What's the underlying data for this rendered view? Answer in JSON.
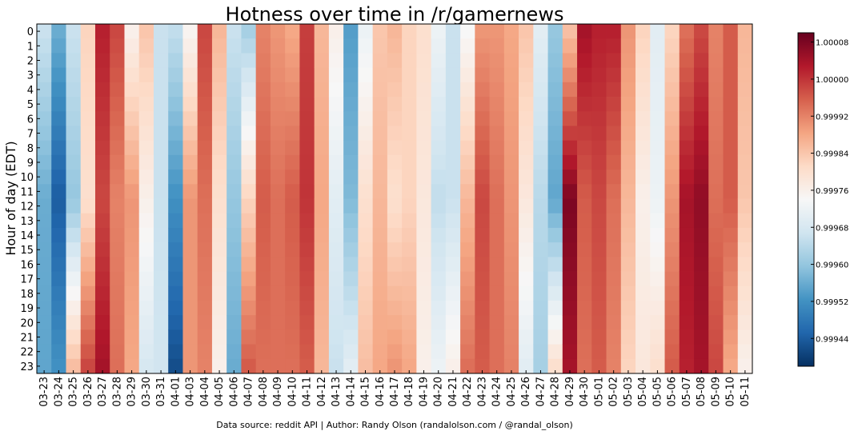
{
  "chart_data": {
    "type": "heatmap",
    "title": "Hotness over time in /r/gamernews",
    "xlabel": "",
    "ylabel": "Hour of day (EDT)",
    "source": "Data source: reddit API | Author: Randy Olson (randalolson.com / @randal_olson)",
    "colormap": "RdBu_r",
    "colormap_stops": [
      "#053061",
      "#2166ac",
      "#4393c3",
      "#92c5de",
      "#d1e5f0",
      "#f7f7f7",
      "#fddbc7",
      "#f4a582",
      "#d6604d",
      "#b2182b",
      "#67001f"
    ],
    "vmin": 0.99938,
    "vmax": 1.0001,
    "colorbar_ticks": [
      {
        "value": 0.99944,
        "label": "0.99944"
      },
      {
        "value": 0.99952,
        "label": "0.99952"
      },
      {
        "value": 0.9996,
        "label": "0.99960"
      },
      {
        "value": 0.99968,
        "label": "0.99968"
      },
      {
        "value": 0.99976,
        "label": "0.99976"
      },
      {
        "value": 0.99984,
        "label": "0.99984"
      },
      {
        "value": 0.99992,
        "label": "0.99992"
      },
      {
        "value": 1.0,
        "label": "1.00000"
      },
      {
        "value": 1.00008,
        "label": "1.00008"
      }
    ],
    "x_categories": [
      "03-23",
      "03-24",
      "03-25",
      "03-26",
      "03-27",
      "03-28",
      "03-29",
      "03-30",
      "03-31",
      "04-01",
      "04-03",
      "04-04",
      "04-05",
      "04-06",
      "04-07",
      "04-08",
      "04-09",
      "04-10",
      "04-11",
      "04-12",
      "04-13",
      "04-14",
      "04-15",
      "04-16",
      "04-17",
      "04-18",
      "04-19",
      "04-20",
      "04-21",
      "04-22",
      "04-23",
      "04-24",
      "04-25",
      "04-26",
      "04-27",
      "04-28",
      "04-29",
      "04-30",
      "05-01",
      "05-02",
      "05-03",
      "05-04",
      "05-05",
      "05-06",
      "05-07",
      "05-08",
      "05-09",
      "05-10",
      "05-11"
    ],
    "y_categories": [
      "0",
      "1",
      "2",
      "3",
      "4",
      "5",
      "6",
      "7",
      "8",
      "9",
      "10",
      "11",
      "12",
      "13",
      "14",
      "15",
      "16",
      "17",
      "18",
      "19",
      "20",
      "21",
      "22",
      "23"
    ],
    "column_profiles": [
      [
        0.99966,
        0.99956,
        0.99955
      ],
      [
        0.99956,
        0.99944,
        0.99952
      ],
      [
        0.99966,
        0.9996,
        0.99985
      ],
      [
        0.99982,
        0.9998,
        0.99998
      ],
      [
        1.00002,
        0.99998,
        1.00004
      ],
      [
        0.99998,
        0.99992,
        0.99994
      ],
      [
        0.99976,
        0.9999,
        0.99988
      ],
      [
        0.99984,
        0.99976,
        0.99968
      ],
      [
        0.99966,
        0.99966,
        0.99967
      ],
      [
        0.99965,
        0.99952,
        0.99942
      ],
      [
        0.99975,
        0.9999,
        0.9999
      ],
      [
        0.99998,
        0.99994,
        0.99992
      ],
      [
        0.99986,
        0.9998,
        0.99976
      ],
      [
        0.99966,
        0.9996,
        0.99956
      ],
      [
        0.99962,
        0.99982,
        0.99996
      ],
      [
        0.99992,
        0.99996,
        0.99994
      ],
      [
        0.9999,
        0.99994,
        0.99994
      ],
      [
        0.99988,
        0.99996,
        0.99994
      ],
      [
        0.99999,
        1.0,
        0.99996
      ],
      [
        0.99986,
        0.99988,
        0.99986
      ],
      [
        0.99976,
        0.9997,
        0.99966
      ],
      [
        0.99954,
        0.99958,
        0.9997
      ],
      [
        0.99972,
        0.9998,
        0.99985
      ],
      [
        0.99984,
        0.99986,
        0.99988
      ],
      [
        0.99986,
        0.9998,
        0.9999
      ],
      [
        0.99982,
        0.99982,
        0.99988
      ],
      [
        0.9998,
        0.99978,
        0.99976
      ],
      [
        0.99972,
        0.99965,
        0.99972
      ],
      [
        0.99966,
        0.99966,
        0.99976
      ],
      [
        0.99974,
        0.99986,
        0.99994
      ],
      [
        0.9999,
        0.99998,
        0.99996
      ],
      [
        0.9999,
        0.99994,
        0.99994
      ],
      [
        0.99988,
        0.9999,
        0.99992
      ],
      [
        0.99984,
        0.99978,
        0.9997
      ],
      [
        0.9997,
        0.99964,
        0.99962
      ],
      [
        0.9996,
        0.99955,
        0.9998
      ],
      [
        0.99985,
        1.00008,
        1.00004
      ],
      [
        1.00004,
        0.99996,
        0.99994
      ],
      [
        1.00002,
        0.99998,
        0.99996
      ],
      [
        1.00002,
        0.99994,
        0.99992
      ],
      [
        0.9999,
        0.99986,
        0.99982
      ],
      [
        0.99982,
        0.99976,
        0.99978
      ],
      [
        0.9997,
        0.99972,
        0.9998
      ],
      [
        0.99982,
        0.9999,
        0.99996
      ],
      [
        0.99994,
        1.00004,
        1.00002
      ],
      [
        0.99998,
        1.00006,
        1.00004
      ],
      [
        0.99992,
        0.99994,
        0.99998
      ],
      [
        0.99996,
        0.99996,
        0.99988
      ],
      [
        0.99986,
        0.99984,
        0.99976
      ]
    ]
  }
}
